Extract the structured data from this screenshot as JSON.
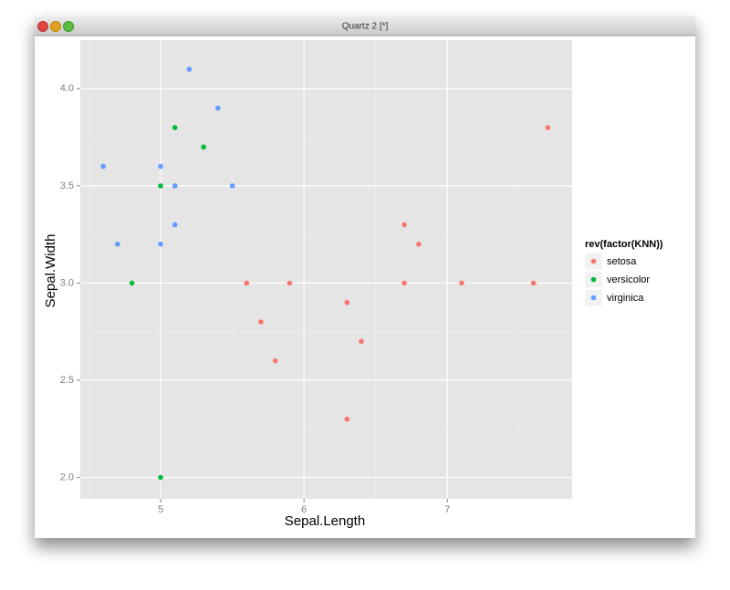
{
  "window": {
    "title": "Quartz 2 [*]"
  },
  "chart_data": {
    "type": "scatter",
    "x_label": "Sepal.Length",
    "y_label": "Sepal.Width",
    "legend_title": "rev(factor(KNN))",
    "legend": "right",
    "grid": true,
    "xlim": [
      4.44,
      7.87
    ],
    "ylim": [
      1.89,
      4.25
    ],
    "xticks": [
      5,
      6,
      7
    ],
    "yticks": [
      {
        "value": 2,
        "label": "2.0"
      },
      2.5,
      {
        "value": 3,
        "label": "3.0"
      },
      3.5,
      {
        "value": 4,
        "label": "4.0"
      }
    ],
    "minor_xticks": [
      4.5,
      5.5,
      6.5,
      7.5
    ],
    "minor_yticks": [
      2.25,
      2.75,
      3.25,
      3.75
    ],
    "series": [
      {
        "name": "setosa",
        "color": "#F8766D",
        "x": [
          5.6,
          5.7,
          5.8,
          5.9,
          6.3,
          6.3,
          6.4,
          6.7,
          6.7,
          6.8,
          7.1,
          7.6,
          7.7
        ],
        "values": [
          3.0,
          2.8,
          2.6,
          3.0,
          2.9,
          2.3,
          2.7,
          3.3,
          3.0,
          3.2,
          3.0,
          3.0,
          3.8
        ]
      },
      {
        "name": "versicolor",
        "color": "#00BA38",
        "x": [
          4.8,
          5.0,
          5.1,
          5.3,
          5.0
        ],
        "values": [
          3.0,
          3.5,
          3.8,
          3.7,
          2.0
        ]
      },
      {
        "name": "virginica",
        "color": "#619CFF",
        "x": [
          4.6,
          4.7,
          5.0,
          5.0,
          5.1,
          5.1,
          5.2,
          5.4,
          5.5
        ],
        "values": [
          3.6,
          3.2,
          3.6,
          3.2,
          3.5,
          3.3,
          4.1,
          3.9,
          3.5
        ]
      }
    ]
  }
}
